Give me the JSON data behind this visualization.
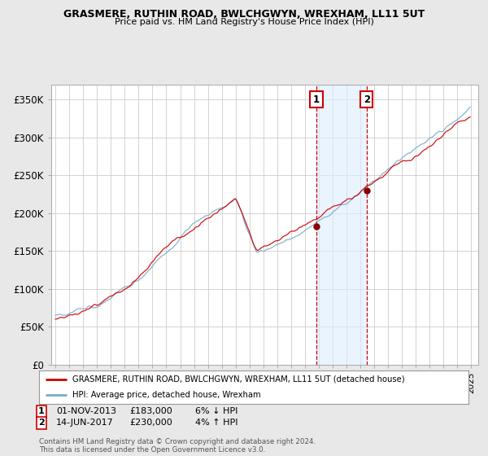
{
  "title": "GRASMERE, RUTHIN ROAD, BWLCHGWYN, WREXHAM, LL11 5UT",
  "subtitle": "Price paid vs. HM Land Registry's House Price Index (HPI)",
  "ylabel_ticks": [
    "£0",
    "£50K",
    "£100K",
    "£150K",
    "£200K",
    "£250K",
    "£300K",
    "£350K"
  ],
  "ytick_values": [
    0,
    50000,
    100000,
    150000,
    200000,
    250000,
    300000,
    350000
  ],
  "ylim": [
    0,
    370000
  ],
  "xlim_start": 1994.7,
  "xlim_end": 2025.5,
  "bg_color": "#e8e8e8",
  "plot_bg_color": "#ffffff",
  "grid_color": "#cccccc",
  "sale1_x": 2013.83,
  "sale1_y": 183000,
  "sale1_label": "1",
  "sale1_date": "01-NOV-2013",
  "sale1_price": "£183,000",
  "sale1_hpi": "6% ↓ HPI",
  "sale2_x": 2017.45,
  "sale2_y": 230000,
  "sale2_label": "2",
  "sale2_date": "14-JUN-2017",
  "sale2_price": "£230,000",
  "sale2_hpi": "4% ↑ HPI",
  "legend1_label": "GRASMERE, RUTHIN ROAD, BWLCHGWYN, WREXHAM, LL11 5UT (detached house)",
  "legend2_label": "HPI: Average price, detached house, Wrexham",
  "footer": "Contains HM Land Registry data © Crown copyright and database right 2024.\nThis data is licensed under the Open Government Licence v3.0.",
  "line_red": "#cc0000",
  "line_blue": "#7aacce",
  "annotation_box_color": "#cc0000",
  "shade_color": "#ddeeff"
}
